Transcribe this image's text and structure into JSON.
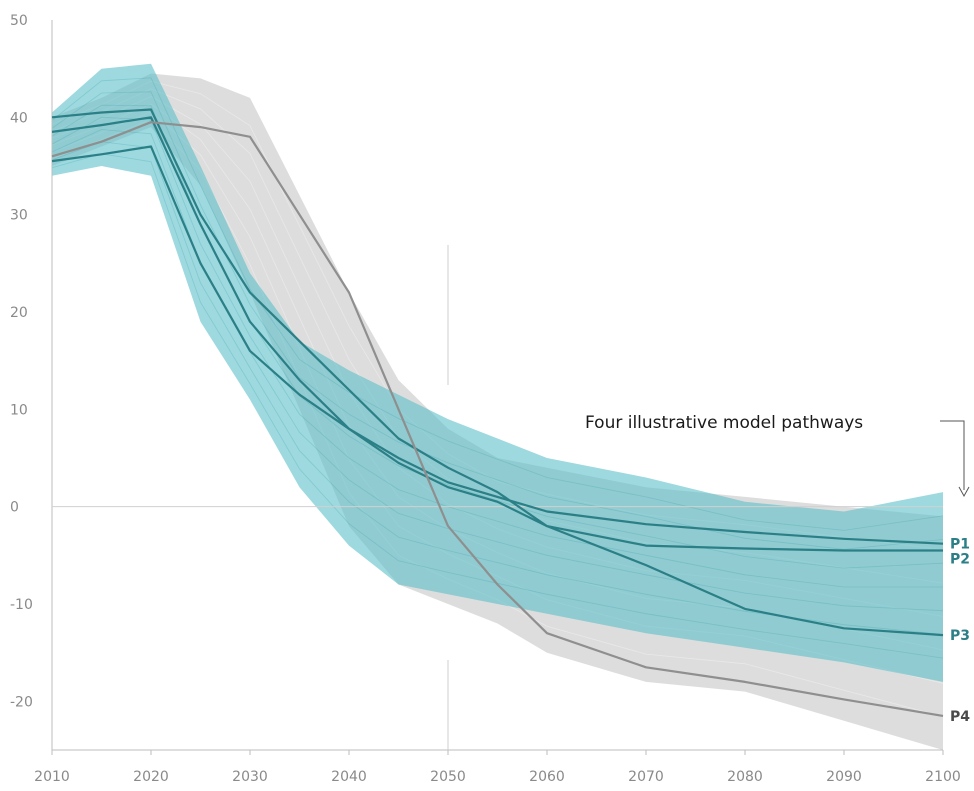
{
  "chart_data": {
    "type": "line",
    "title": "",
    "xlabel": "",
    "ylabel": "",
    "xlim": [
      2010,
      2100
    ],
    "ylim": [
      -25,
      50
    ],
    "x_ticks": [
      2010,
      2020,
      2030,
      2040,
      2050,
      2060,
      2070,
      2080,
      2090,
      2100
    ],
    "y_ticks": [
      50,
      40,
      30,
      20,
      10,
      0,
      -10,
      -20
    ],
    "x": [
      2010,
      2015,
      2020,
      2025,
      2030,
      2035,
      2040,
      2045,
      2050,
      2055,
      2060,
      2070,
      2080,
      2090,
      2100
    ],
    "grid": false,
    "annotation": "Four illustrative model pathways",
    "colors": {
      "teal_band": "#5bbfc8",
      "teal_line": "#2b7f86",
      "grey_band": "#d2d2d2",
      "grey_line": "#8f8f8f",
      "p_label_teal": "#2b7f86",
      "p_label_grey": "#4a4a4a"
    },
    "bands": [
      {
        "name": "grey-range",
        "upper": [
          40,
          42,
          44.5,
          44,
          42,
          32,
          22,
          13,
          8,
          5,
          4,
          2,
          1,
          0,
          -1
        ],
        "lower": [
          35,
          37,
          39,
          33,
          22,
          10,
          -2,
          -8,
          -10,
          -12,
          -15,
          -18,
          -19,
          -22,
          -25
        ]
      },
      {
        "name": "teal-range",
        "upper": [
          40.5,
          45,
          45.5,
          35,
          24,
          17,
          14,
          11.5,
          9,
          7,
          5,
          3,
          0.5,
          -0.5,
          1.5
        ],
        "lower": [
          34,
          35,
          34,
          19,
          11,
          2,
          -4,
          -8,
          -9,
          -10,
          -11,
          -13,
          -14.5,
          -16,
          -18
        ]
      }
    ],
    "series": [
      {
        "name": "P1",
        "values": [
          35.5,
          36.2,
          37,
          25,
          16,
          11.5,
          8,
          5,
          2.5,
          1,
          -0.5,
          -1.8,
          -2.6,
          -3.3,
          -3.8
        ]
      },
      {
        "name": "P2",
        "values": [
          40,
          40.5,
          40.8,
          30,
          22,
          17,
          12,
          7,
          4,
          1.5,
          -2,
          -4,
          -4.3,
          -4.5,
          -4.5
        ]
      },
      {
        "name": "P3",
        "values": [
          38.5,
          39.2,
          40,
          29,
          19,
          13,
          8,
          4.5,
          2,
          0.5,
          -2,
          -6,
          -10.5,
          -12.5,
          -13.2
        ]
      },
      {
        "name": "P4",
        "values": [
          36,
          37.5,
          39.5,
          39,
          38,
          30,
          22,
          10,
          -2,
          -8,
          -13,
          -16.5,
          -18,
          -19.8,
          -21.5
        ]
      }
    ]
  }
}
